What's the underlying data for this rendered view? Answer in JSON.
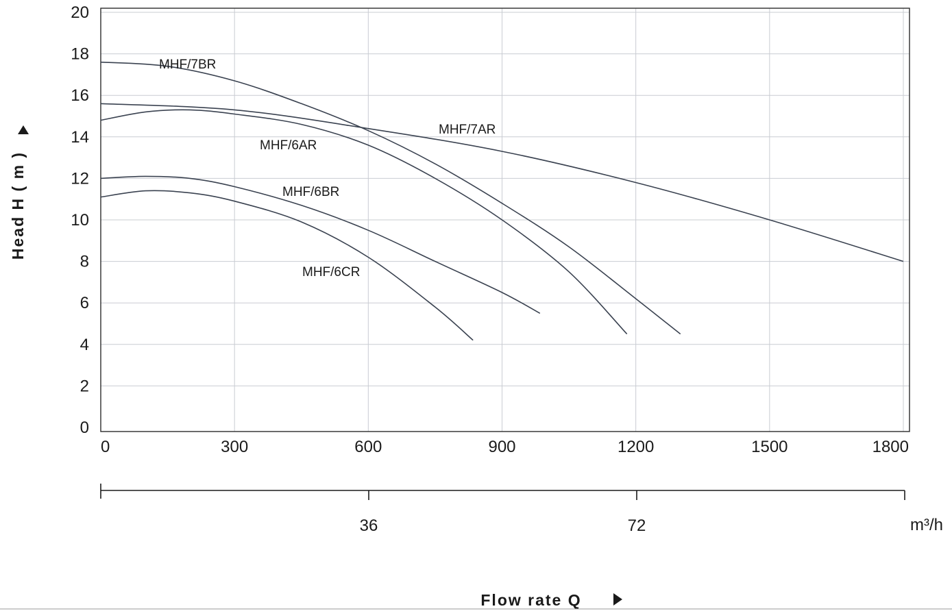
{
  "chart_data": {
    "type": "line",
    "xlabel": "Flow rate Q",
    "ylabel": "Head H ( m )",
    "xlim": [
      0,
      1800
    ],
    "ylim": [
      0,
      20
    ],
    "x_ticks": [
      0,
      300,
      600,
      900,
      1200,
      1500,
      1800
    ],
    "y_ticks": [
      0,
      2,
      4,
      6,
      8,
      10,
      12,
      14,
      16,
      18,
      20
    ],
    "secondary_x_axis": {
      "ticks": [
        36,
        72
      ],
      "unit_label": "m³/h"
    },
    "grid": true,
    "series": [
      {
        "name": "MHF/7BR",
        "x": [
          0,
          150,
          300,
          450,
          600,
          750,
          900,
          1050,
          1200,
          1300
        ],
        "y": [
          17.6,
          17.4,
          16.7,
          15.6,
          14.3,
          12.7,
          10.8,
          8.7,
          6.2,
          4.5
        ]
      },
      {
        "name": "MHF/7AR",
        "x": [
          0,
          300,
          600,
          900,
          1200,
          1500,
          1800
        ],
        "y": [
          15.6,
          15.3,
          14.4,
          13.3,
          11.8,
          10.0,
          8.0
        ]
      },
      {
        "name": "MHF/6AR",
        "x": [
          0,
          100,
          200,
          300,
          450,
          600,
          750,
          900,
          1050,
          1180
        ],
        "y": [
          14.8,
          15.2,
          15.3,
          15.1,
          14.6,
          13.6,
          12.0,
          10.0,
          7.5,
          4.5
        ]
      },
      {
        "name": "MHF/6BR",
        "x": [
          0,
          100,
          200,
          300,
          450,
          600,
          750,
          900,
          985
        ],
        "y": [
          12.0,
          12.1,
          12.0,
          11.6,
          10.7,
          9.5,
          8.0,
          6.5,
          5.5
        ]
      },
      {
        "name": "MHF/6CR",
        "x": [
          0,
          100,
          200,
          300,
          450,
          600,
          750,
          835
        ],
        "y": [
          11.1,
          11.4,
          11.3,
          10.9,
          9.9,
          8.2,
          5.8,
          4.2
        ]
      }
    ]
  }
}
